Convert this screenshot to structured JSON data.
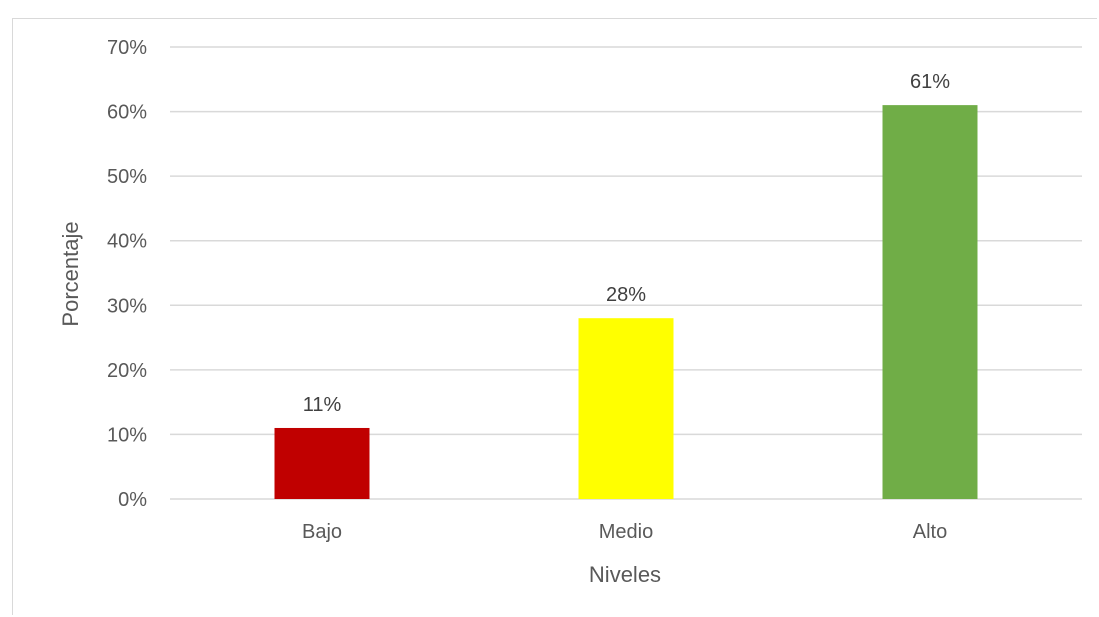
{
  "chart_data": {
    "type": "bar",
    "categories": [
      "Bajo",
      "Medio",
      "Alto"
    ],
    "values": [
      11,
      28,
      61
    ],
    "data_labels": [
      "11%",
      "28%",
      "61%"
    ],
    "colors": [
      "#c00000",
      "#ffff00",
      "#70ad47"
    ],
    "xlabel": "Niveles",
    "ylabel": "Porcentaje",
    "ylim": [
      0,
      70
    ],
    "yticks": [
      0,
      10,
      20,
      30,
      40,
      50,
      60,
      70
    ],
    "ytick_labels": [
      "0%",
      "10%",
      "20%",
      "30%",
      "40%",
      "50%",
      "60%",
      "70%"
    ],
    "grid": true,
    "legend": "none"
  }
}
